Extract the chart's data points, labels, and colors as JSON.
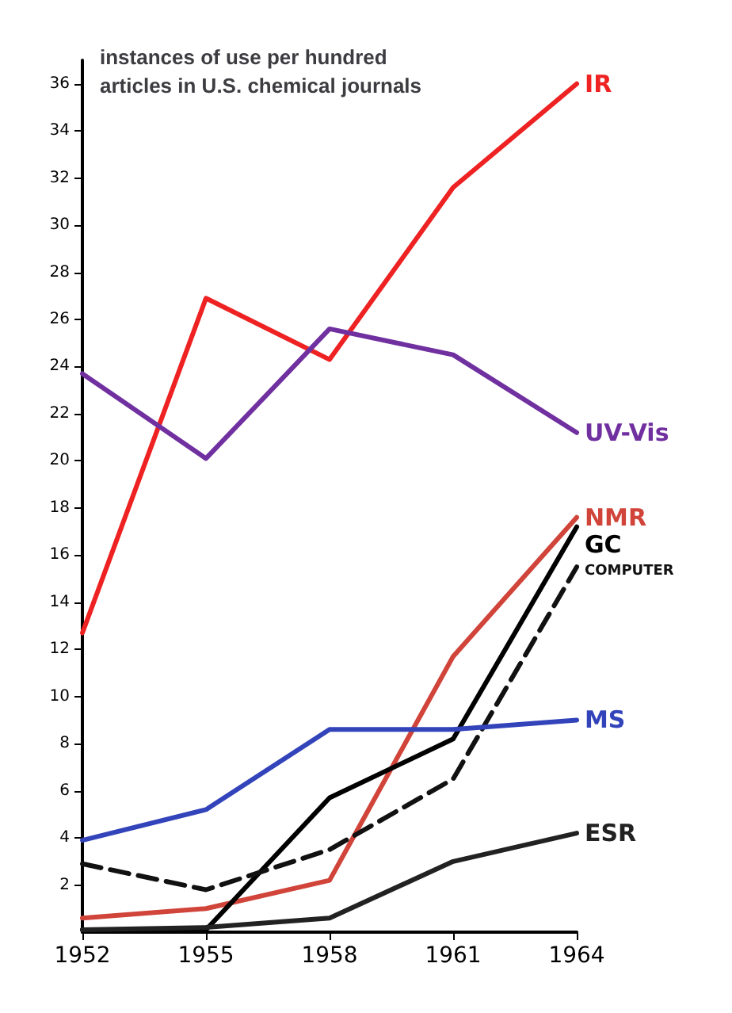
{
  "chart_data": {
    "type": "line",
    "title": "instances of use per hundred\narticles in U.S. chemical journals",
    "categories": [
      "1952",
      "1955",
      "1958",
      "1961",
      "1964"
    ],
    "series": [
      {
        "name": "IR",
        "color": "#ee2222",
        "values": [
          12.7,
          26.9,
          24.3,
          31.6,
          36
        ]
      },
      {
        "name": "UV-Vis",
        "color": "#7030a0",
        "values": [
          23.7,
          20.1,
          25.6,
          24.5,
          21.2
        ]
      },
      {
        "name": "NMR",
        "color": "#d0443a",
        "values": [
          0.6,
          1.0,
          2.2,
          11.7,
          17.6
        ]
      },
      {
        "name": "GC",
        "color": "#000000",
        "values": [
          0.1,
          0.1,
          5.7,
          8.2,
          17.2
        ]
      },
      {
        "name": "COMPUTER",
        "color": "#111111",
        "line_style": "dashed",
        "values": [
          2.9,
          1.8,
          3.5,
          6.5,
          15.5
        ]
      },
      {
        "name": "MS",
        "color": "#3344bb",
        "values": [
          3.9,
          5.2,
          8.6,
          8.6,
          9.0
        ]
      },
      {
        "name": "ESR",
        "color": "#222222",
        "values": [
          0.1,
          0.2,
          0.6,
          3.0,
          4.2
        ]
      }
    ],
    "ylim": [
      0,
      37
    ],
    "yticks": [
      2,
      4,
      6,
      8,
      10,
      12,
      14,
      16,
      18,
      20,
      22,
      24,
      26,
      28,
      30,
      32,
      34,
      36
    ],
    "grid": false,
    "legend": false,
    "marker": "none"
  }
}
